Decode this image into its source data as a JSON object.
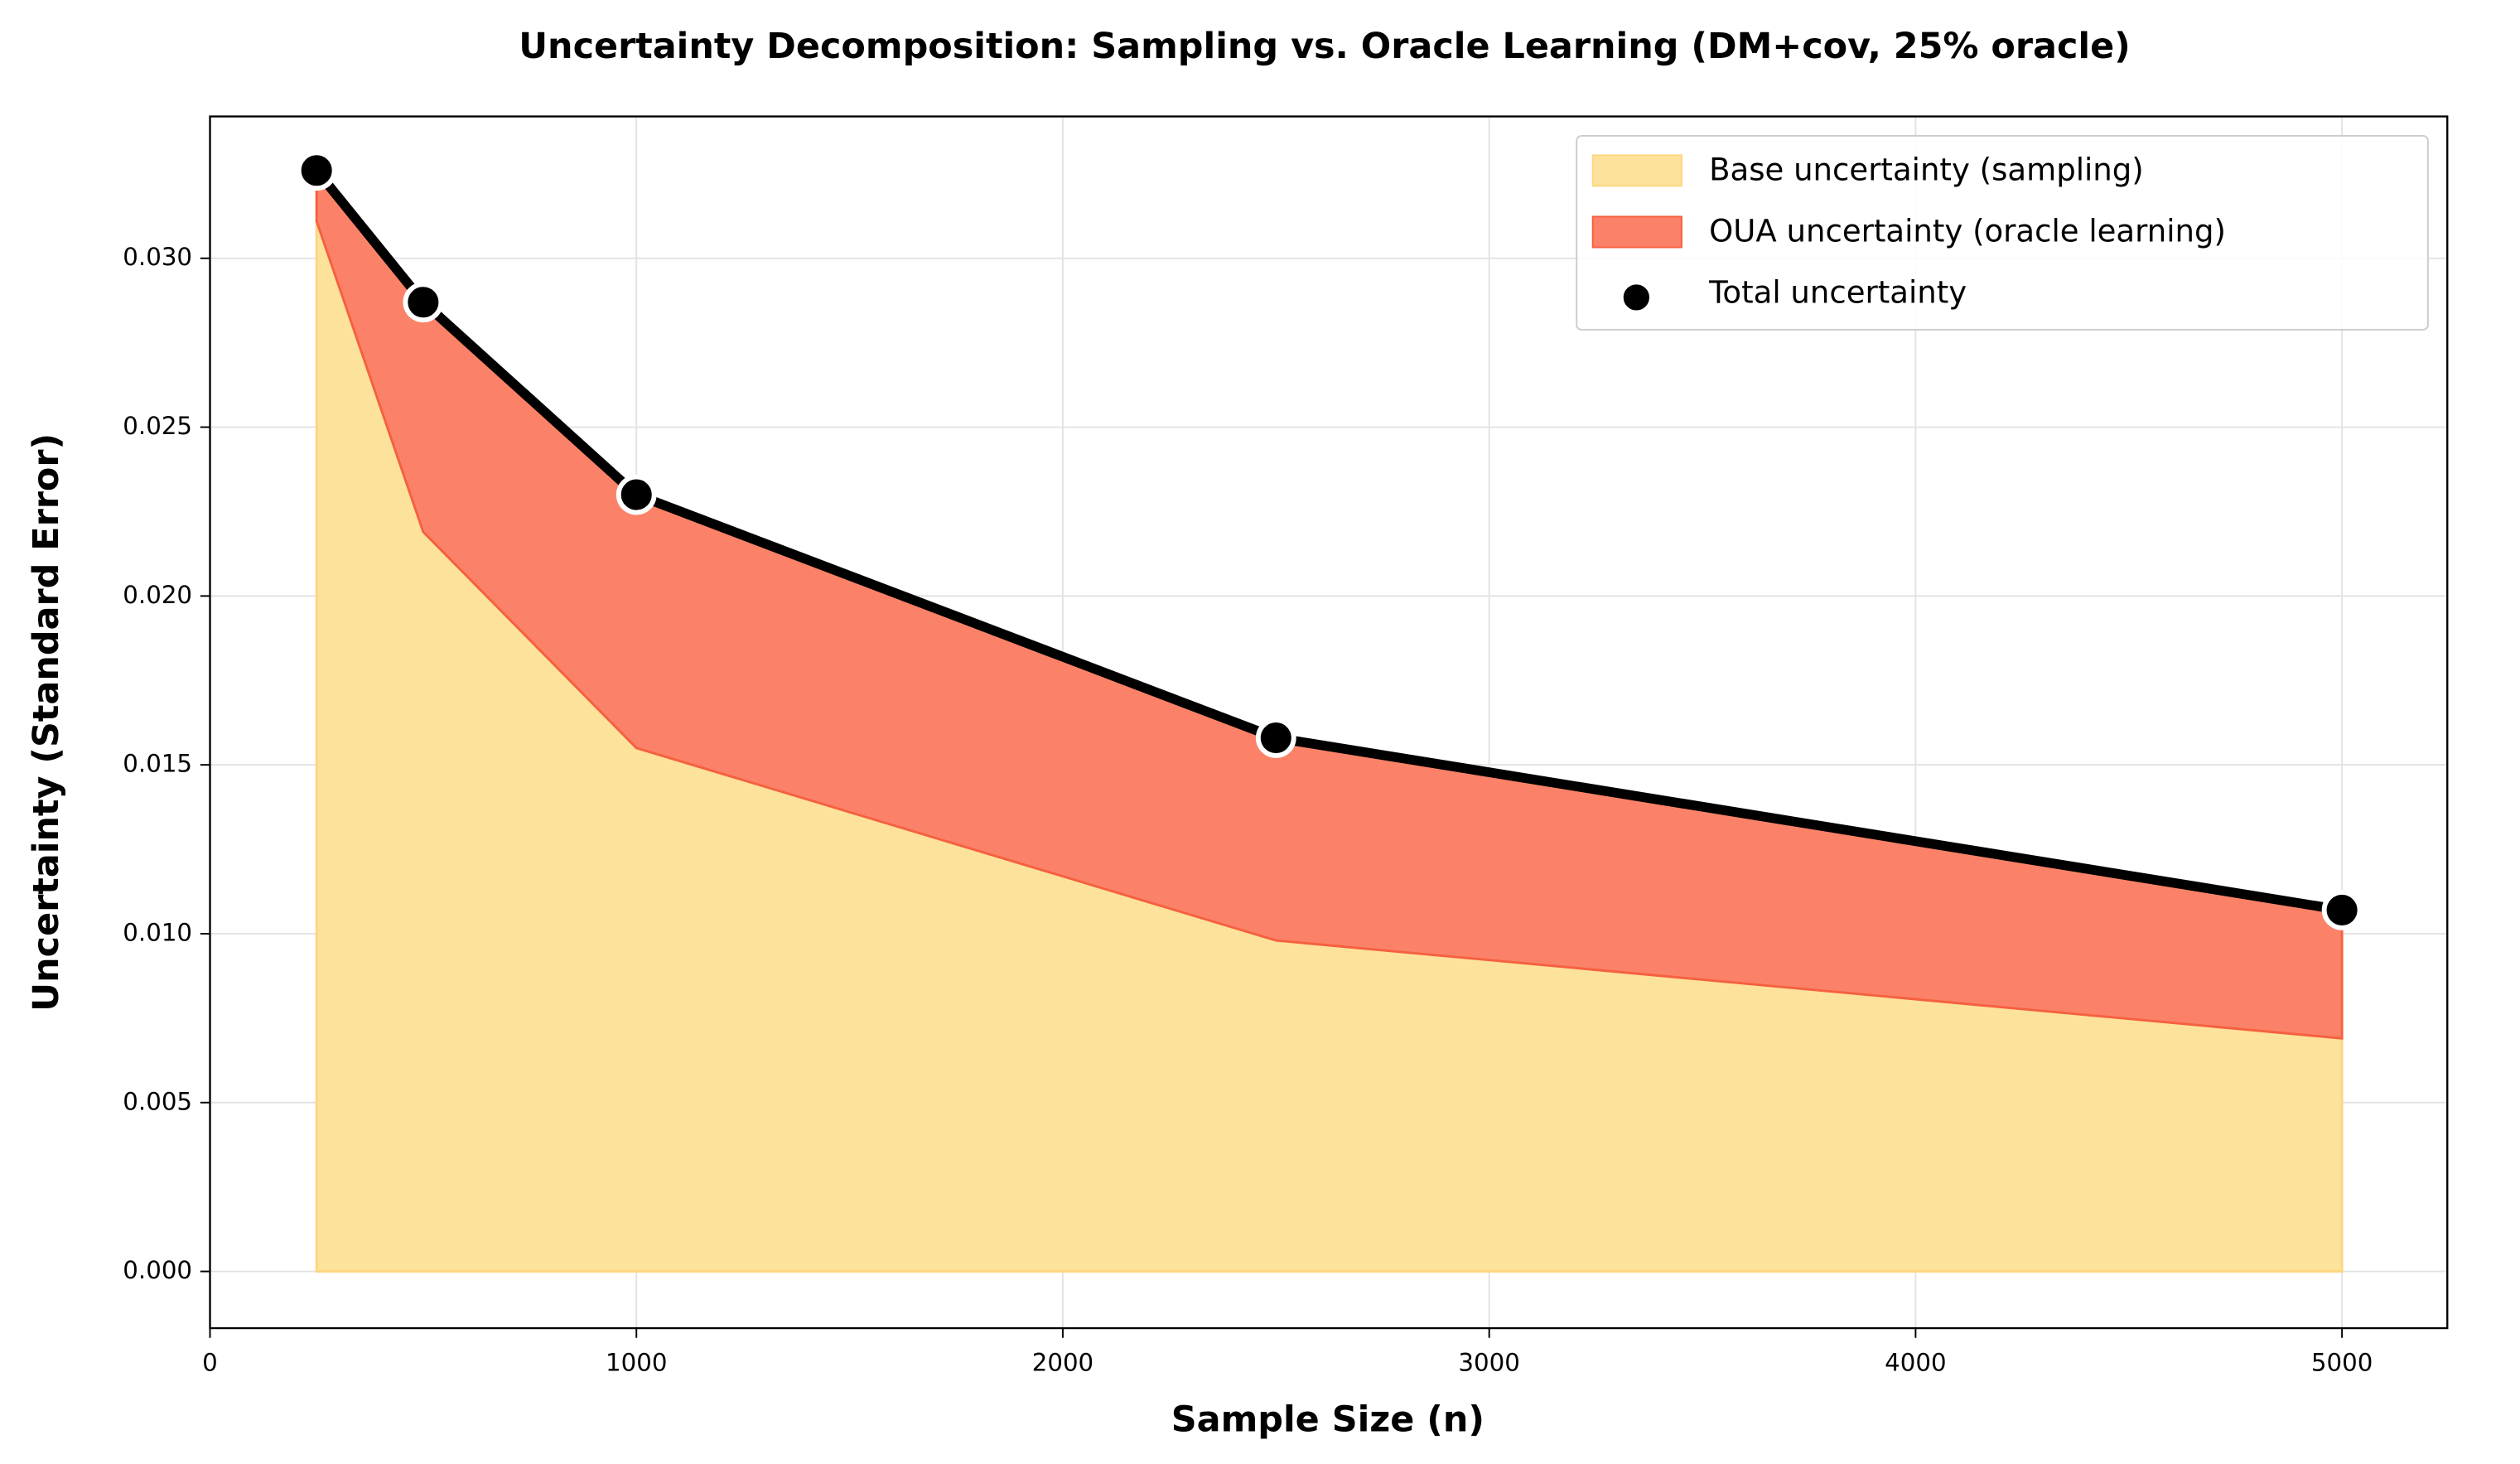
{
  "chart_data": {
    "type": "stacked-area",
    "title": "Uncertainty Decomposition: Sampling vs. Oracle Learning (DM+cov, 25% oracle)",
    "x_label": "Sample Size (n)",
    "y_label": "Uncertainty (Standard Error)",
    "x": [
      250,
      500,
      1000,
      2500,
      5000
    ],
    "series": [
      {
        "name": "Base uncertainty (sampling)",
        "color": "#fde29b",
        "edge": "#fcd680",
        "kind": "area",
        "values": [
          0.0311,
          0.0219,
          0.0155,
          0.0098,
          0.0069
        ]
      },
      {
        "name": "OUA uncertainty (oracle learning)",
        "color": "#fb8268",
        "edge": "#f56040",
        "kind": "area",
        "values": [
          0.0015,
          0.0068,
          0.0075,
          0.006,
          0.0038
        ]
      },
      {
        "name": "Total uncertainty",
        "color": "#000000",
        "kind": "line-marker",
        "values": [
          0.0326,
          0.0287,
          0.023,
          0.0158,
          0.0107
        ]
      }
    ],
    "xlim": [
      0,
      5247
    ],
    "ylim": [
      -0.00168,
      0.0342
    ],
    "xticks": [
      0,
      1000,
      2000,
      3000,
      4000,
      5000
    ],
    "yticks": [
      {
        "value": 0,
        "label": "0.000"
      },
      {
        "value": 0.005,
        "label": "0.005"
      },
      {
        "value": 0.01,
        "label": "0.010"
      },
      {
        "value": 0.015,
        "label": "0.015"
      },
      {
        "value": 0.02,
        "label": "0.020"
      },
      {
        "value": 0.025,
        "label": "0.025"
      },
      {
        "value": 0.03,
        "label": "0.030"
      }
    ],
    "grid": true,
    "legend": "upper right"
  }
}
